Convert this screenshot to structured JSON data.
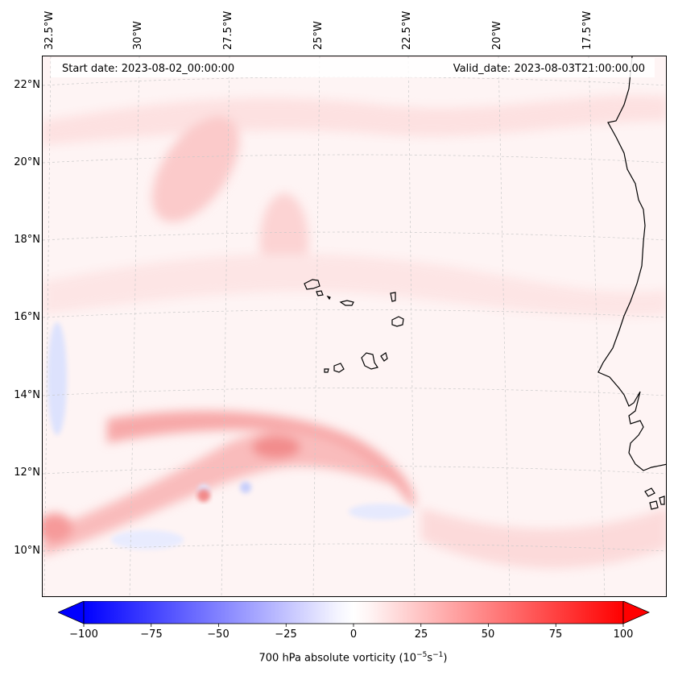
{
  "map": {
    "start_date": "Start date: 2023-08-02_00:00:00",
    "valid_date": "Valid_date: 2023-08-03T21:00:00.00",
    "longitude_labels": [
      "32.5°W",
      "30°W",
      "27.5°W",
      "25°W",
      "22.5°W",
      "20°W",
      "17.5°W"
    ],
    "latitude_labels": [
      "22°N",
      "20°N",
      "18°N",
      "16°N",
      "14°N",
      "12°N",
      "10°N"
    ],
    "variable": "700 hPa absolute vorticity",
    "units_base": "10",
    "units_exp1": "−5",
    "units_mid": "s",
    "units_exp2": "−1",
    "colors": {
      "negative": "#0000ff",
      "neutral": "#ffffff",
      "positive": "#ff0000",
      "coast": "#000000"
    }
  },
  "colorbar": {
    "min": -100,
    "max": 100,
    "ticks": [
      "−100",
      "−75",
      "−50",
      "−25",
      "0",
      "25",
      "50",
      "75",
      "100"
    ],
    "tick_values": [
      -100,
      -75,
      -50,
      -25,
      0,
      25,
      50,
      75,
      100
    ]
  }
}
